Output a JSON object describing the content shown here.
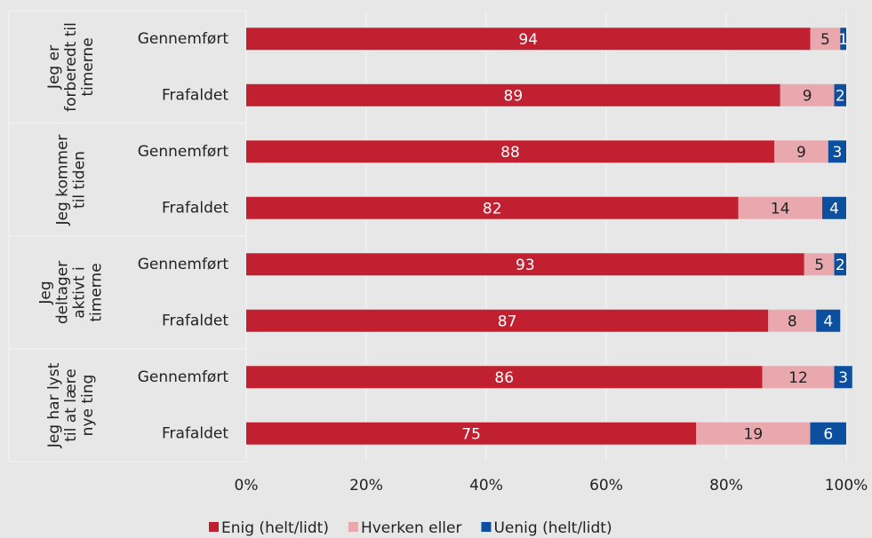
{
  "chart_data": {
    "type": "stacked-bar-horizontal",
    "groups": [
      [
        "Jeg er",
        "forberedt til",
        "timerne"
      ],
      [
        "Jeg kommer",
        "til tiden"
      ],
      [
        "Jeg",
        "deltager",
        "aktivt i",
        "timerne"
      ],
      [
        "Jeg har lyst",
        "til at lære",
        "nye ting"
      ]
    ],
    "categories": [
      "Gennemført",
      "Frafaldet",
      "Gennemført",
      "Frafaldet",
      "Gennemført",
      "Frafaldet",
      "Gennemført",
      "Frafaldet"
    ],
    "series": [
      {
        "name": "Enig (helt/lidt)",
        "color": "#c0202f",
        "values": [
          94,
          89,
          88,
          82,
          93,
          87,
          86,
          75
        ]
      },
      {
        "name": "Hverken eller",
        "color": "#e9a8ad",
        "values": [
          5,
          9,
          9,
          14,
          5,
          8,
          12,
          19
        ]
      },
      {
        "name": "Uenig (helt/lidt)",
        "color": "#0b4f9e",
        "values": [
          1,
          2,
          3,
          4,
          2,
          4,
          3,
          6
        ]
      }
    ],
    "xlim": [
      0,
      100
    ],
    "xticks": [
      {
        "value": 0,
        "label": "0%"
      },
      {
        "value": 20,
        "label": "20%"
      },
      {
        "value": 40,
        "label": "40%"
      },
      {
        "value": 60,
        "label": "60%"
      },
      {
        "value": 80,
        "label": "80%"
      },
      {
        "value": 100,
        "label": "100%"
      }
    ],
    "grid": true
  }
}
